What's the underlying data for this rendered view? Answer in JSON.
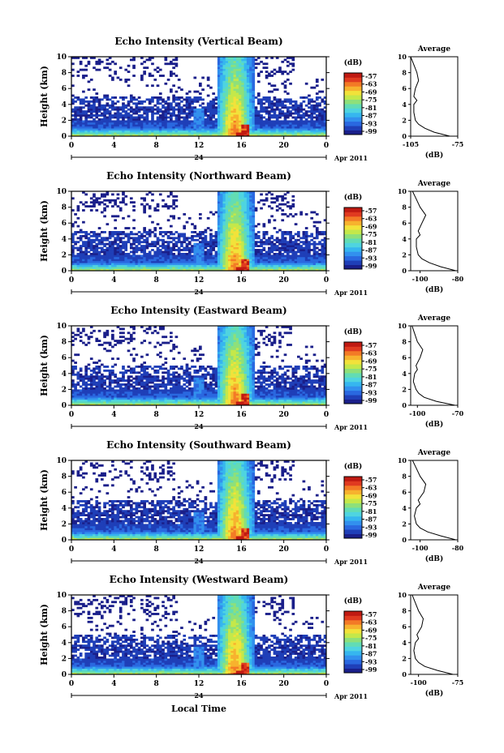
{
  "figure": {
    "xlabel": "Local Time",
    "date_label": "Apr 2011",
    "day_label": "24",
    "avg_title": "Average",
    "avg_xlabel": "(dB)",
    "cbar_unit": "(dB)"
  },
  "chart_data": [
    {
      "type": "heatmap",
      "title": "Echo Intensity (Vertical Beam)",
      "ylabel": "Height (km)",
      "xlabel": "Local Time",
      "xlim": [
        0,
        24
      ],
      "xticks": [
        "0",
        "4",
        "8",
        "12",
        "16",
        "20",
        "0"
      ],
      "ylim": [
        0,
        10
      ],
      "yticks": [
        "0",
        "2",
        "4",
        "6",
        "8",
        "10"
      ],
      "colorbar": {
        "label": "(dB)",
        "ticks": [
          "-57",
          "-63",
          "-69",
          "-75",
          "-81",
          "-87",
          "-93",
          "-99"
        ]
      },
      "average_profile": {
        "title": "Average",
        "xlabel": "(dB)",
        "xticks": [
          "-105",
          "-75"
        ],
        "xlim": [
          -105,
          -75
        ],
        "height": [
          0,
          0.5,
          1,
          1.5,
          2,
          3,
          4,
          4.5,
          5,
          6,
          7,
          8,
          9,
          10
        ],
        "value": [
          -80,
          -90,
          -96,
          -100,
          -102,
          -103,
          -103,
          -101,
          -103,
          -102,
          -100,
          -101,
          -103,
          -105
        ]
      }
    },
    {
      "type": "heatmap",
      "title": "Echo Intensity (Northward Beam)",
      "ylabel": "Height (km)",
      "xlabel": "Local Time",
      "xlim": [
        0,
        24
      ],
      "xticks": [
        "0",
        "4",
        "8",
        "12",
        "16",
        "20",
        "0"
      ],
      "ylim": [
        0,
        10
      ],
      "yticks": [
        "0",
        "2",
        "4",
        "6",
        "8",
        "10"
      ],
      "colorbar": {
        "label": "(dB)",
        "ticks": [
          "-57",
          "-63",
          "-69",
          "-75",
          "-81",
          "-87",
          "-93",
          "-99"
        ]
      },
      "average_profile": {
        "title": "Average",
        "xlabel": "(dB)",
        "xticks": [
          "-100",
          "-80"
        ],
        "xlim": [
          -105,
          -80
        ],
        "height": [
          0,
          0.5,
          1,
          1.5,
          2,
          3,
          4,
          4.5,
          5,
          6,
          7,
          8,
          9,
          10
        ],
        "value": [
          -81,
          -89,
          -95,
          -99,
          -101,
          -102,
          -102,
          -100,
          -101,
          -99,
          -97,
          -100,
          -102,
          -104
        ]
      }
    },
    {
      "type": "heatmap",
      "title": "Echo Intensity (Eastward Beam)",
      "ylabel": "Height (km)",
      "xlabel": "Local Time",
      "xlim": [
        0,
        24
      ],
      "xticks": [
        "0",
        "4",
        "8",
        "12",
        "16",
        "20",
        "0"
      ],
      "ylim": [
        0,
        10
      ],
      "yticks": [
        "0",
        "2",
        "4",
        "6",
        "8",
        "10"
      ],
      "colorbar": {
        "label": "(dB)",
        "ticks": [
          "-57",
          "-63",
          "-69",
          "-75",
          "-81",
          "-87",
          "-93",
          "-99"
        ]
      },
      "average_profile": {
        "title": "Average",
        "xlabel": "(dB)",
        "xticks": [
          "-100",
          "-70"
        ],
        "xlim": [
          -105,
          -70
        ],
        "height": [
          0,
          0.5,
          1,
          1.5,
          2,
          3,
          4,
          4.5,
          5,
          6,
          7,
          8,
          9,
          10
        ],
        "value": [
          -72,
          -86,
          -95,
          -99,
          -101,
          -103,
          -102,
          -100,
          -101,
          -98,
          -96,
          -100,
          -102,
          -104
        ]
      }
    },
    {
      "type": "heatmap",
      "title": "Echo Intensity (Southward Beam)",
      "ylabel": "Height (km)",
      "xlabel": "Local Time",
      "xlim": [
        0,
        24
      ],
      "xticks": [
        "0",
        "4",
        "8",
        "12",
        "16",
        "20",
        "0"
      ],
      "ylim": [
        0,
        10
      ],
      "yticks": [
        "0",
        "2",
        "4",
        "6",
        "8",
        "10"
      ],
      "colorbar": {
        "label": "(dB)",
        "ticks": [
          "-57",
          "-63",
          "-69",
          "-75",
          "-81",
          "-87",
          "-93",
          "-99"
        ]
      },
      "average_profile": {
        "title": "Average",
        "xlabel": "(dB)",
        "xticks": [
          "-100",
          "-80"
        ],
        "xlim": [
          -105,
          -80
        ],
        "height": [
          0,
          0.5,
          1,
          1.5,
          2,
          3,
          4,
          4.5,
          5,
          6,
          7,
          8,
          9,
          10
        ],
        "value": [
          -81,
          -89,
          -96,
          -100,
          -102,
          -103,
          -102,
          -100,
          -101,
          -98,
          -97,
          -100,
          -102,
          -104
        ]
      }
    },
    {
      "type": "heatmap",
      "title": "Echo Intensity (Westward Beam)",
      "ylabel": "Height (km)",
      "xlabel": "Local Time",
      "xlim": [
        0,
        24
      ],
      "xticks": [
        "0",
        "4",
        "8",
        "12",
        "16",
        "20",
        "0"
      ],
      "ylim": [
        0,
        10
      ],
      "yticks": [
        "0",
        "2",
        "4",
        "6",
        "8",
        "10"
      ],
      "colorbar": {
        "label": "(dB)",
        "ticks": [
          "-57",
          "-63",
          "-69",
          "-75",
          "-81",
          "-87",
          "-93",
          "-99"
        ]
      },
      "average_profile": {
        "title": "Average",
        "xlabel": "(dB)",
        "xticks": [
          "-100",
          "-75"
        ],
        "xlim": [
          -105,
          -75
        ],
        "height": [
          0,
          0.5,
          1,
          1.5,
          2,
          3,
          4,
          4.5,
          5,
          6,
          7,
          8,
          9,
          10
        ],
        "value": [
          -78,
          -88,
          -96,
          -100,
          -102,
          -103,
          -102,
          -100,
          -101,
          -98,
          -97,
          -100,
          -102,
          -104
        ]
      }
    }
  ]
}
